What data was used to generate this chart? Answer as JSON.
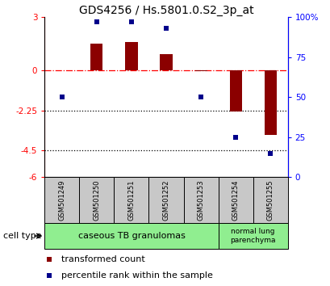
{
  "title": "GDS4256 / Hs.5801.0.S2_3p_at",
  "samples": [
    "GSM501249",
    "GSM501250",
    "GSM501251",
    "GSM501252",
    "GSM501253",
    "GSM501254",
    "GSM501255"
  ],
  "transformed_count": [
    0.0,
    1.5,
    1.6,
    0.9,
    -0.05,
    -2.3,
    -3.6
  ],
  "percentile_rank": [
    50,
    97,
    97,
    93,
    50,
    25,
    15
  ],
  "ylim_left": [
    -6,
    3
  ],
  "ylim_right": [
    0,
    100
  ],
  "yticks_left": [
    -6,
    -4.5,
    -2.25,
    0,
    3
  ],
  "ytick_labels_left": [
    "-6",
    "-4.5",
    "-2.25",
    "0",
    "3"
  ],
  "yticks_right": [
    0,
    25,
    50,
    75,
    100
  ],
  "ytick_labels_right": [
    "0",
    "25",
    "50",
    "75",
    "100%"
  ],
  "hlines": [
    0,
    -2.25,
    -4.5
  ],
  "hline_styles": [
    "dashdot",
    "dotted",
    "dotted"
  ],
  "hline_colors": [
    "red",
    "black",
    "black"
  ],
  "bar_color": "#8B0000",
  "dot_color": "#00008B",
  "cell_type_label": "cell type",
  "ct_group1_label": "caseous TB granulomas",
  "ct_group2_label": "normal lung\nparenchyma",
  "ct_color": "#90EE90",
  "sample_box_color": "#C8C8C8",
  "legend_bar_label": "transformed count",
  "legend_dot_label": "percentile rank within the sample",
  "title_fontsize": 10,
  "tick_fontsize": 7.5,
  "sample_fontsize": 6.0,
  "legend_fontsize": 8,
  "celltype_fontsize": 8
}
